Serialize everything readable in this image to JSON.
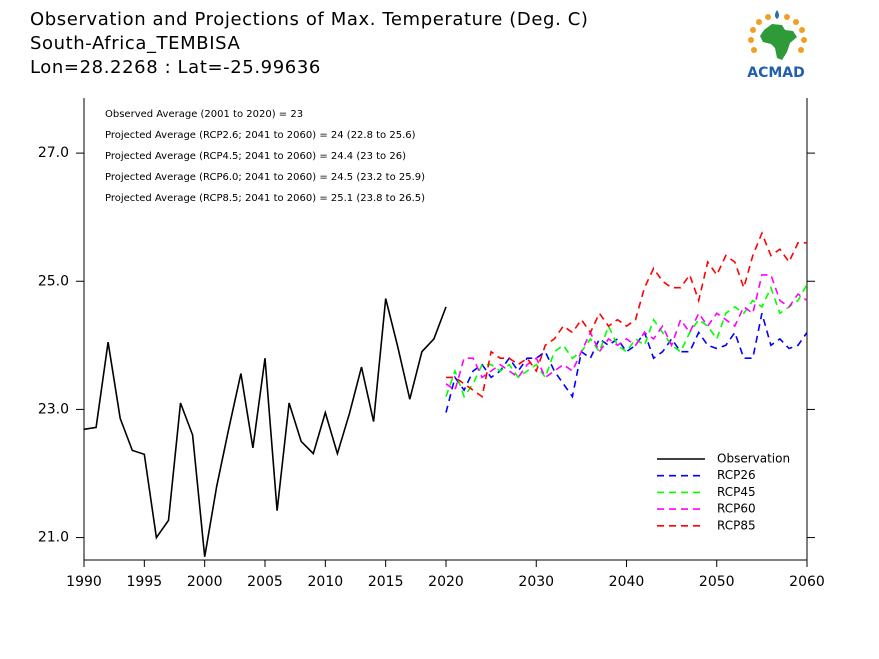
{
  "logo": {
    "text": "ACMAD"
  },
  "chart_data": [
    {
      "type": "line",
      "title": "Observation and Projections of Max. Temperature (Deg. C)",
      "subtitle": [
        "South-Africa_TEMBISA",
        "Lon=28.2268 : Lat=-25.99636"
      ],
      "annotations": [
        "Observed Average (2001 to 2020) = 23",
        "Projected Average (RCP2.6; 2041 to 2060) = 24 (22.8 to 25.6)",
        "Projected Average (RCP4.5; 2041 to 2060) = 24.4 (23 to 26)",
        "Projected Average (RCP6.0; 2041 to 2060) = 24.5 (23.2 to 25.9)",
        "Projected Average (RCP8.5; 2041 to 2060) = 25.1 (23.8 to 26.5)"
      ],
      "x": [
        1990,
        1991,
        1992,
        1993,
        1994,
        1995,
        1996,
        1997,
        1998,
        1999,
        2000,
        2001,
        2002,
        2003,
        2004,
        2005,
        2006,
        2007,
        2008,
        2009,
        2010,
        2011,
        2012,
        2013,
        2014,
        2015,
        2016,
        2017,
        2018,
        2019,
        2020
      ],
      "series": [
        {
          "name": "Observation",
          "color": "#000000",
          "dashed": false,
          "values": [
            22.69,
            22.72,
            24.05,
            22.86,
            22.36,
            22.3,
            21.0,
            21.27,
            23.1,
            22.6,
            20.7,
            21.8,
            22.7,
            23.56,
            22.4,
            23.8,
            21.42,
            23.1,
            22.5,
            22.31,
            22.95,
            22.31,
            22.94,
            23.66,
            22.81,
            24.73,
            23.98,
            23.16,
            23.9,
            24.1,
            24.6
          ]
        }
      ],
      "xlim": [
        1990,
        2020
      ],
      "xticks": [
        1990,
        1995,
        2000,
        2005,
        2010,
        2015,
        2020
      ],
      "ylim": [
        20.65,
        27.86
      ],
      "yticks": [
        {
          "value": 21,
          "label": "21.0"
        },
        {
          "value": 23,
          "label": "23.0"
        },
        {
          "value": 25,
          "label": "25.0"
        },
        {
          "value": 27,
          "label": "27.0"
        }
      ],
      "legend": "lower right"
    },
    {
      "type": "line",
      "x": [
        2020,
        2021,
        2022,
        2023,
        2024,
        2025,
        2026,
        2027,
        2028,
        2029,
        2030,
        2031,
        2032,
        2033,
        2034,
        2035,
        2036,
        2037,
        2038,
        2039,
        2040,
        2041,
        2042,
        2043,
        2044,
        2045,
        2046,
        2047,
        2048,
        2049,
        2050,
        2051,
        2052,
        2053,
        2054,
        2055,
        2056,
        2057,
        2058,
        2059,
        2060
      ],
      "series": [
        {
          "name": "RCP26",
          "color": "#0000ff",
          "dashed": true,
          "values": [
            22.95,
            23.5,
            23.3,
            23.6,
            23.7,
            23.5,
            23.6,
            23.8,
            23.6,
            23.8,
            23.8,
            23.9,
            23.6,
            23.4,
            23.2,
            23.9,
            23.8,
            24.1,
            24.0,
            24.1,
            23.9,
            24.0,
            24.2,
            23.8,
            23.9,
            24.1,
            23.9,
            23.9,
            24.2,
            24.0,
            23.95,
            24.0,
            24.2,
            23.8,
            23.8,
            24.5,
            24.0,
            24.1,
            23.95,
            24.0,
            24.2
          ]
        },
        {
          "name": "RCP45",
          "color": "#00ff00",
          "dashed": true,
          "values": [
            23.2,
            23.6,
            23.2,
            23.4,
            23.7,
            23.7,
            23.6,
            23.7,
            23.5,
            23.6,
            23.7,
            23.5,
            23.9,
            24.0,
            23.8,
            23.9,
            24.1,
            23.9,
            24.3,
            24.0,
            23.9,
            24.1,
            24.0,
            24.4,
            24.2,
            24.0,
            23.9,
            24.2,
            24.4,
            24.3,
            24.1,
            24.5,
            24.6,
            24.5,
            24.7,
            24.6,
            24.9,
            24.5,
            24.6,
            24.7,
            24.95
          ]
        },
        {
          "name": "RCP60",
          "color": "#ff00ff",
          "dashed": true,
          "values": [
            23.4,
            23.3,
            23.8,
            23.8,
            23.5,
            23.6,
            23.7,
            23.6,
            23.5,
            23.7,
            23.8,
            23.5,
            23.6,
            23.7,
            23.6,
            23.9,
            24.2,
            23.9,
            24.1,
            24.0,
            24.1,
            24.0,
            24.2,
            24.1,
            24.3,
            24.0,
            24.4,
            24.2,
            24.5,
            24.3,
            24.5,
            24.4,
            24.3,
            24.6,
            24.5,
            25.1,
            25.1,
            24.7,
            24.6,
            24.8,
            24.7
          ]
        },
        {
          "name": "RCP85",
          "color": "#ff0000",
          "dashed": true,
          "values": [
            23.5,
            23.5,
            23.4,
            23.3,
            23.2,
            23.9,
            23.8,
            23.8,
            23.7,
            23.8,
            23.6,
            24.0,
            24.1,
            24.3,
            24.2,
            24.4,
            24.2,
            24.5,
            24.3,
            24.4,
            24.3,
            24.4,
            24.9,
            25.2,
            25.0,
            24.9,
            24.9,
            25.1,
            24.7,
            25.3,
            25.1,
            25.4,
            25.3,
            24.9,
            25.4,
            25.75,
            25.4,
            25.5,
            25.3,
            25.6,
            25.6
          ]
        }
      ],
      "xlim": [
        2020,
        2060
      ],
      "xticks": [
        2030,
        2040,
        2050,
        2060
      ],
      "ylim": [
        20.65,
        27.86
      ]
    }
  ]
}
